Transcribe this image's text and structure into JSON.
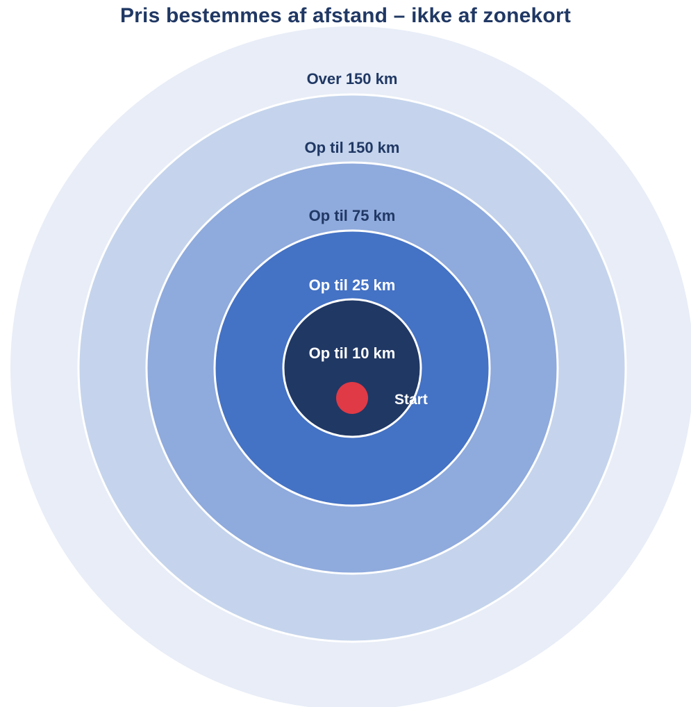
{
  "title": "Pris bestemmes af afstand – ikke af zonekort",
  "rings": [
    {
      "id": "over-150",
      "label": "Over 150 km",
      "fill": "#e8edf7",
      "label_color": "#203864"
    },
    {
      "id": "upto-150",
      "label": "Op til 150 km",
      "fill": "#c5d4ec",
      "label_color": "#203864"
    },
    {
      "id": "upto-75",
      "label": "Op til 75 km",
      "fill": "#8faadc",
      "label_color": "#203864"
    },
    {
      "id": "upto-25",
      "label": "Op til 25 km",
      "fill": "#4472c4",
      "label_color": "#ffffff"
    },
    {
      "id": "upto-10",
      "label": "Op til 10 km",
      "fill": "#203864",
      "label_color": "#ffffff"
    }
  ],
  "start": {
    "label": "Start",
    "dot_color": "#e03a46",
    "label_color": "#ffffff"
  }
}
